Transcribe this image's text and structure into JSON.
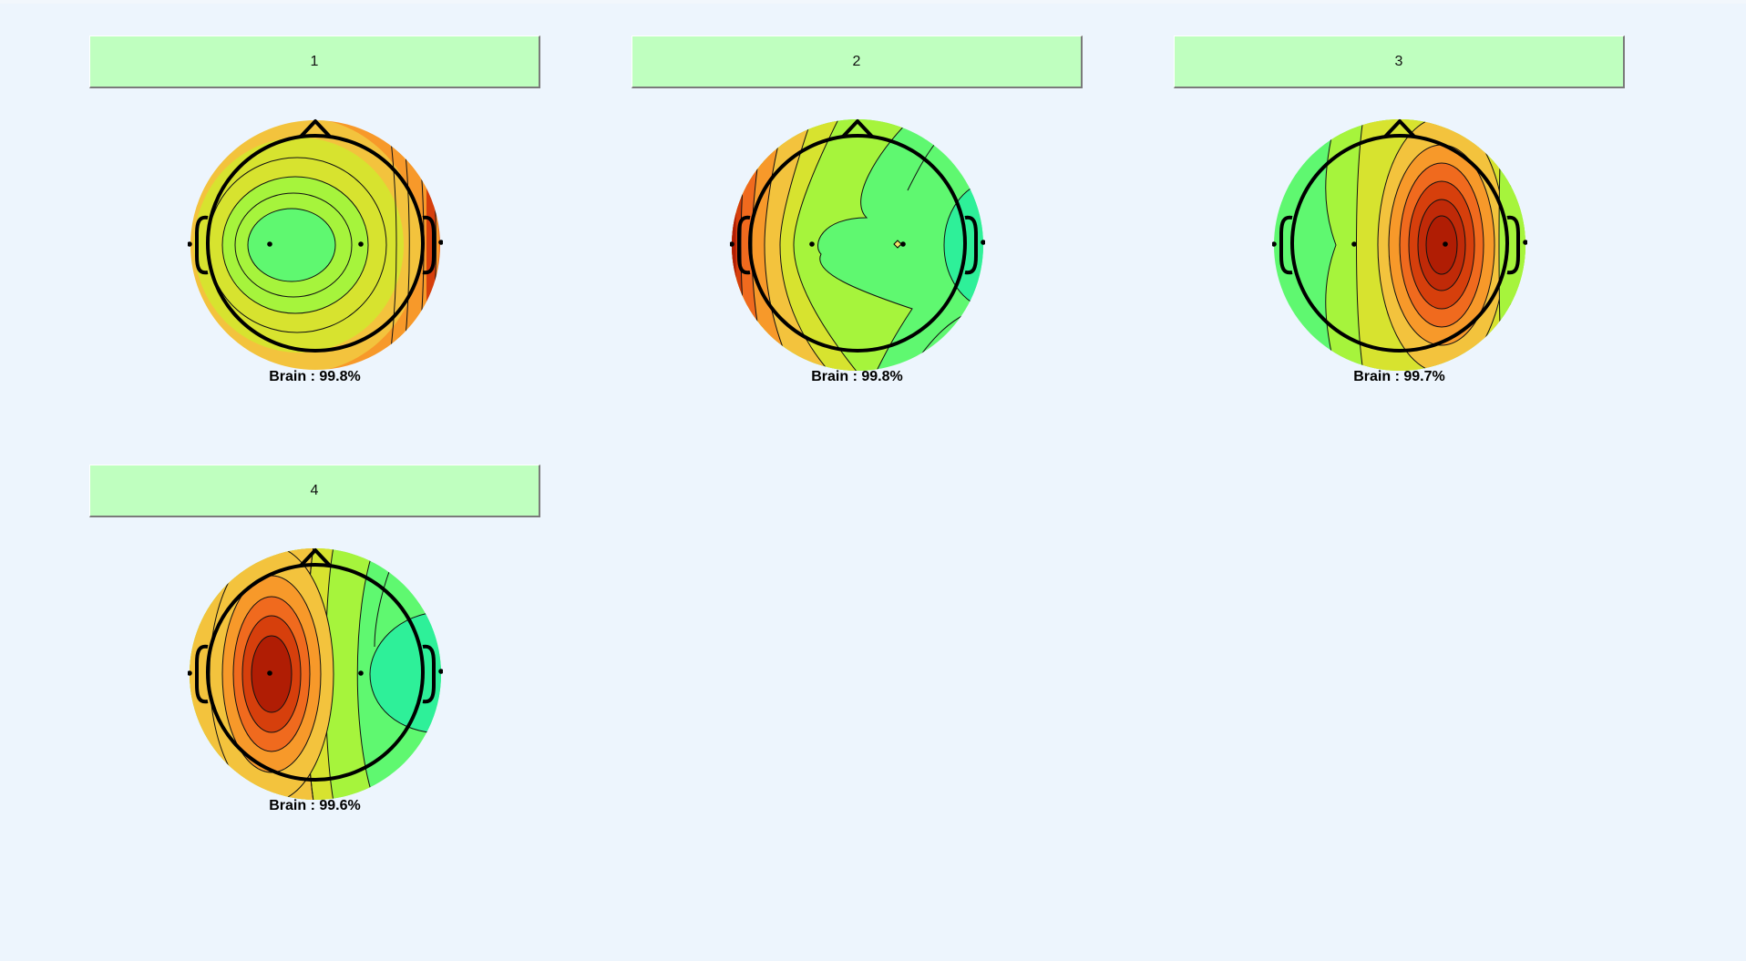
{
  "colors": {
    "background": "#edf5fd",
    "button_bg": "#bfffbf",
    "jet_scale": [
      "#2ef099",
      "#5ff870",
      "#a6f43c",
      "#d7e32f",
      "#f3c33d",
      "#f7992a",
      "#f06a1e",
      "#d63f0c",
      "#b01d04"
    ]
  },
  "components": [
    {
      "label": "1",
      "classification": "Brain : 99.8%",
      "pattern": "concentric-radial",
      "description_icon": "scalp-topography-icon"
    },
    {
      "label": "2",
      "classification": "Brain : 99.8%",
      "pattern": "left-positive-gradient",
      "description_icon": "scalp-topography-icon"
    },
    {
      "label": "3",
      "classification": "Brain : 99.7%",
      "pattern": "right-central-peak",
      "description_icon": "scalp-topography-icon"
    },
    {
      "label": "4",
      "classification": "Brain : 99.6%",
      "pattern": "left-central-peak",
      "description_icon": "scalp-topography-icon"
    }
  ]
}
